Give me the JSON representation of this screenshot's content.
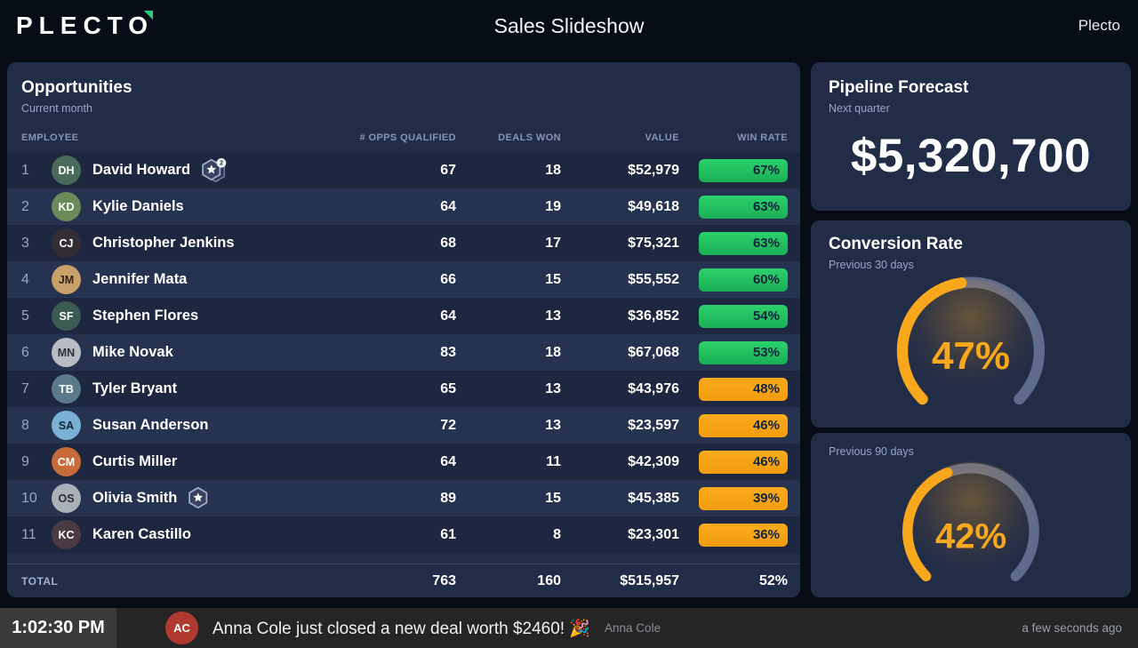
{
  "header": {
    "logo": "PLECTO",
    "title": "Sales Slideshow",
    "account": "Plecto"
  },
  "opportunities": {
    "title": "Opportunities",
    "subtitle": "Current month",
    "columns": [
      "EMPLOYEE",
      "# OPPS QUALIFIED",
      "DEALS WON",
      "VALUE",
      "WIN RATE"
    ],
    "rows": [
      {
        "rank": "1",
        "name": "David Howard",
        "initials": "DH",
        "avatar_color": "#4a6b5a",
        "avatar_text": "#ffffff",
        "badges": 2,
        "opps": "67",
        "deals": "18",
        "value": "$52,979",
        "win_rate": "67%",
        "status": "green"
      },
      {
        "rank": "2",
        "name": "Kylie Daniels",
        "initials": "KD",
        "avatar_color": "#6b8a5a",
        "avatar_text": "#ffffff",
        "badges": 0,
        "opps": "64",
        "deals": "19",
        "value": "$49,618",
        "win_rate": "63%",
        "status": "green"
      },
      {
        "rank": "3",
        "name": "Christopher Jenkins",
        "initials": "CJ",
        "avatar_color": "#332d36",
        "avatar_text": "#ffffff",
        "badges": 0,
        "opps": "68",
        "deals": "17",
        "value": "$75,321",
        "win_rate": "63%",
        "status": "green"
      },
      {
        "rank": "4",
        "name": "Jennifer Mata",
        "initials": "JM",
        "avatar_color": "#c9a06a",
        "avatar_text": "#2c2418",
        "badges": 0,
        "opps": "66",
        "deals": "15",
        "value": "$55,552",
        "win_rate": "60%",
        "status": "green"
      },
      {
        "rank": "5",
        "name": "Stephen Flores",
        "initials": "SF",
        "avatar_color": "#3a5a52",
        "avatar_text": "#ffffff",
        "badges": 0,
        "opps": "64",
        "deals": "13",
        "value": "$36,852",
        "win_rate": "54%",
        "status": "green"
      },
      {
        "rank": "6",
        "name": "Mike Novak",
        "initials": "MN",
        "avatar_color": "#b8bcc4",
        "avatar_text": "#2a2e36",
        "badges": 0,
        "opps": "83",
        "deals": "18",
        "value": "$67,068",
        "win_rate": "53%",
        "status": "green"
      },
      {
        "rank": "7",
        "name": "Tyler Bryant",
        "initials": "TB",
        "avatar_color": "#5a7a8a",
        "avatar_text": "#ffffff",
        "badges": 0,
        "opps": "65",
        "deals": "13",
        "value": "$43,976",
        "win_rate": "48%",
        "status": "orange"
      },
      {
        "rank": "8",
        "name": "Susan Anderson",
        "initials": "SA",
        "avatar_color": "#7ab0d4",
        "avatar_text": "#15242e",
        "badges": 0,
        "opps": "72",
        "deals": "13",
        "value": "$23,597",
        "win_rate": "46%",
        "status": "orange"
      },
      {
        "rank": "9",
        "name": "Curtis Miller",
        "initials": "CM",
        "avatar_color": "#c96a3a",
        "avatar_text": "#ffffff",
        "badges": 0,
        "opps": "64",
        "deals": "11",
        "value": "$42,309",
        "win_rate": "46%",
        "status": "orange"
      },
      {
        "rank": "10",
        "name": "Olivia Smith",
        "initials": "OS",
        "avatar_color": "#aab0b8",
        "avatar_text": "#272b30",
        "badges": 1,
        "opps": "89",
        "deals": "15",
        "value": "$45,385",
        "win_rate": "39%",
        "status": "orange"
      },
      {
        "rank": "11",
        "name": "Karen Castillo",
        "initials": "KC",
        "avatar_color": "#4a3a42",
        "avatar_text": "#ffffff",
        "badges": 0,
        "opps": "61",
        "deals": "8",
        "value": "$23,301",
        "win_rate": "36%",
        "status": "orange"
      }
    ],
    "total": {
      "label": "TOTAL",
      "opps": "763",
      "deals": "160",
      "value": "$515,957",
      "win_rate": "52%"
    }
  },
  "pipeline": {
    "title": "Pipeline Forecast",
    "subtitle": "Next quarter",
    "value": "$5,320,700"
  },
  "conversion": {
    "title": "Conversion Rate",
    "gauges": [
      {
        "label": "Previous 30 days",
        "percent": 47,
        "display": "47%"
      },
      {
        "label": "Previous 90 days",
        "percent": 42,
        "display": "42%"
      }
    ],
    "arc_span_degrees": 270
  },
  "ticker": {
    "time": "1:02:30 PM",
    "message": "Anna Cole just closed a new deal worth $2460! 🎉",
    "author": "Anna Cole",
    "author_initials": "AC",
    "author_avatar_color": "#b03a30",
    "timestamp": "a few seconds ago"
  },
  "colors": {
    "win_rate_green": "#22c164",
    "win_rate_orange": "#f7a414",
    "gauge_track": "#5e6b8d",
    "gauge_value": "#f9a71b",
    "brand_green": "#25d07c",
    "panel_bg": "#212c47"
  }
}
